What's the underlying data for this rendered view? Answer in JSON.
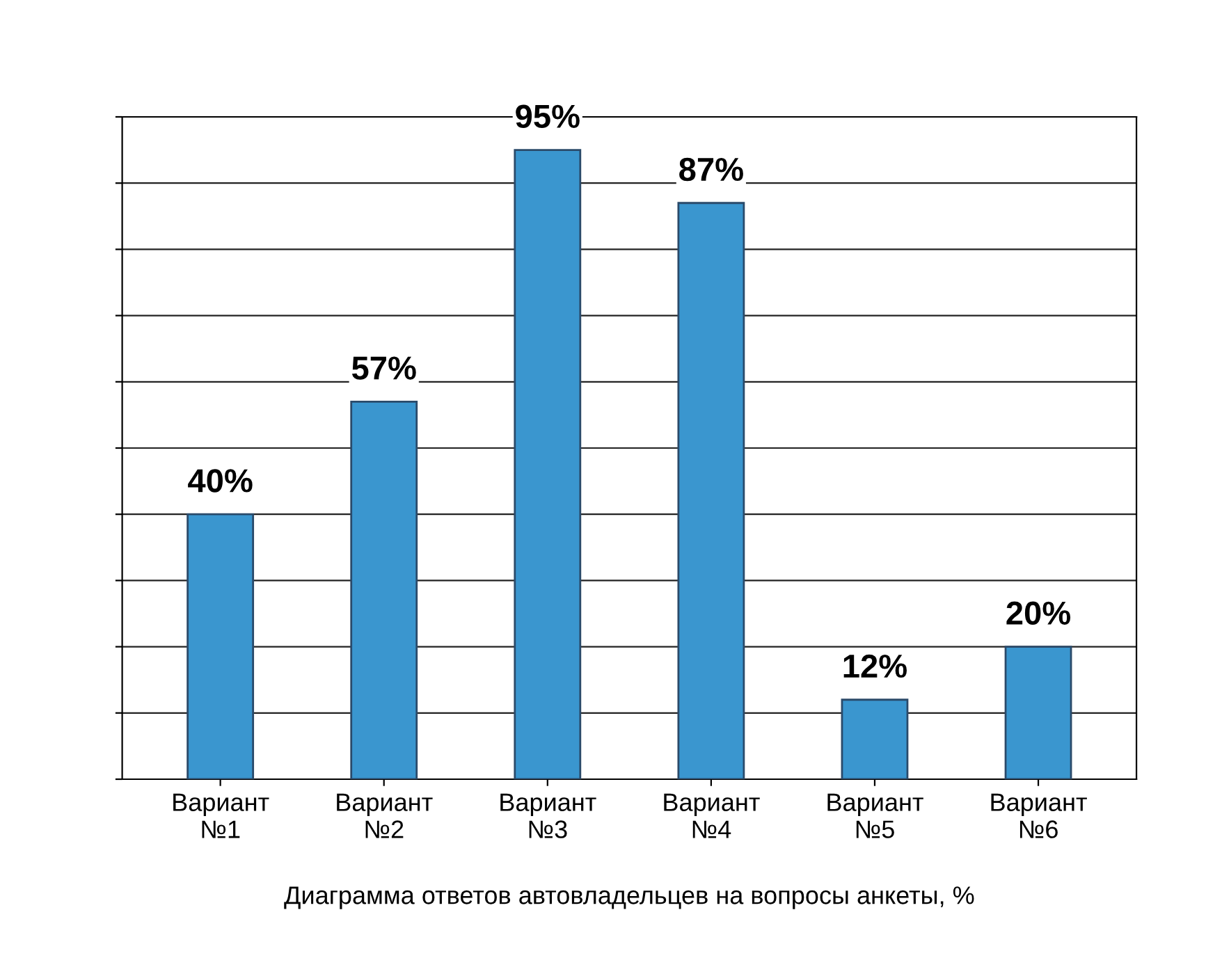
{
  "chart_data": {
    "type": "bar",
    "categories": [
      "Вариант\n№1",
      "Вариант\n№2",
      "Вариант\n№3",
      "Вариант\n№4",
      "Вариант\n№5",
      "Вариант\n№6"
    ],
    "values": [
      40,
      57,
      95,
      87,
      12,
      20
    ],
    "value_labels": [
      "40%",
      "57%",
      "95%",
      "87%",
      "12%",
      "20%"
    ],
    "color": "#3a96cf",
    "xlabel": "Диаграмма ответов автовладельцев на вопросы анкеты, %",
    "ylim": [
      0,
      100
    ],
    "yticks": [
      {
        "value": 0,
        "label": null
      },
      {
        "value": 10,
        "label": null
      },
      {
        "value": 20,
        "label": null
      },
      {
        "value": 30,
        "label": null
      },
      {
        "value": 40,
        "label": null
      },
      {
        "value": 50,
        "label": null
      },
      {
        "value": 60,
        "label": null
      },
      {
        "value": 70,
        "label": null
      },
      {
        "value": 80,
        "label": null
      },
      {
        "value": 90,
        "label": null
      },
      {
        "value": 100,
        "label": null
      }
    ],
    "grid": "y",
    "tick_labels": "x"
  }
}
